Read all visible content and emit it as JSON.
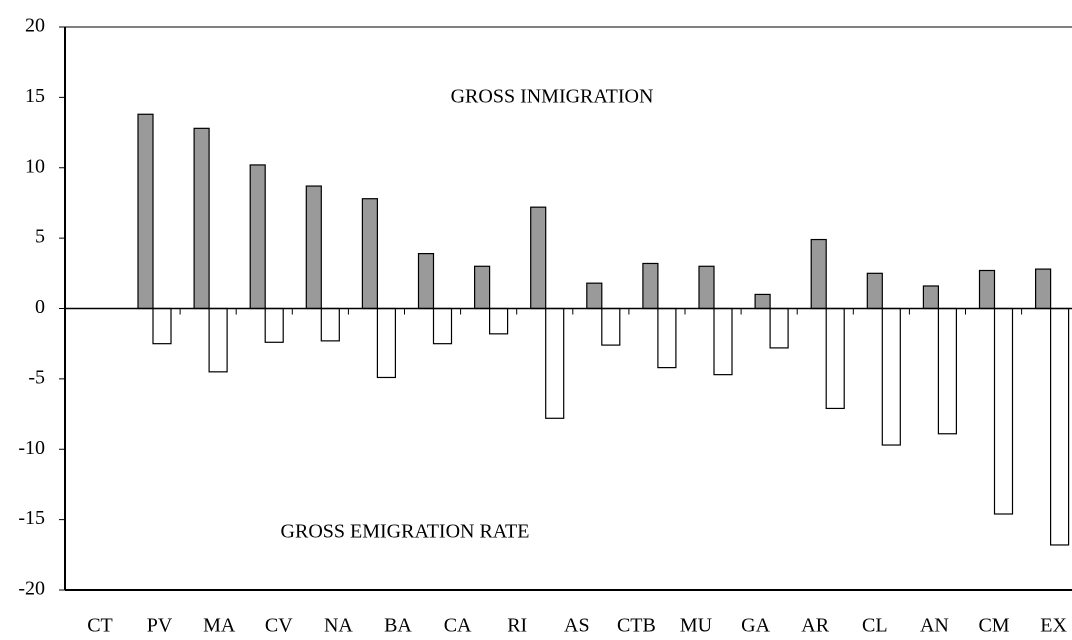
{
  "chart_data": {
    "type": "bar",
    "categories": [
      "CT",
      "PV",
      "MA",
      "CV",
      "NA",
      "BA",
      "CA",
      "RI",
      "AS",
      "CTB",
      "MU",
      "GA",
      "AR",
      "CL",
      "AN",
      "CM",
      "EX"
    ],
    "series": [
      {
        "color": "#9a9a9a",
        "values": [
          13.8,
          12.8,
          10.2,
          8.7,
          7.8,
          3.9,
          3.0,
          7.2,
          1.8,
          3.2,
          3.0,
          1.0,
          4.9,
          2.5,
          1.6,
          2.7,
          2.8
        ]
      },
      {
        "color": "#ffffff",
        "values": [
          -2.5,
          -4.5,
          -2.4,
          -2.3,
          -4.9,
          -2.5,
          -1.8,
          -7.8,
          -2.6,
          -4.2,
          -4.7,
          -2.8,
          -7.1,
          -9.7,
          -8.9,
          -14.6,
          -16.8
        ]
      }
    ],
    "annotations": [
      "GROSS INMIGRATION",
      "GROSS EMIGRATION RATE"
    ],
    "ylim": [
      -20,
      20
    ],
    "yticks": [
      -20,
      -15,
      -10,
      -5,
      0,
      5,
      10,
      15,
      20
    ],
    "grid": false
  }
}
